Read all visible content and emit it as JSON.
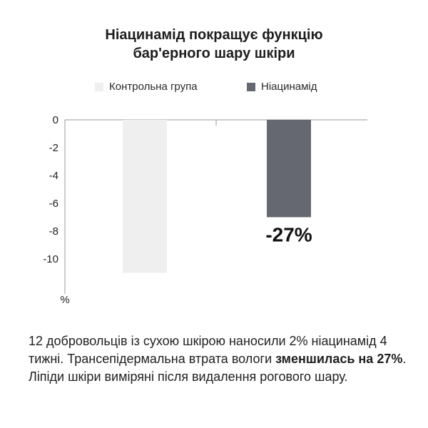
{
  "title": {
    "line1": "Ніацинамід покращує функцію",
    "line2": "бар'ерного шару шкіри"
  },
  "legend": [
    {
      "label": "Контрольна група",
      "color": "#efefef"
    },
    {
      "label": "Ніацинамід",
      "color": "#656870"
    }
  ],
  "chart_data": {
    "type": "bar",
    "categories": [
      "Контрольна група",
      "Ніацинамід"
    ],
    "values": [
      -11,
      -7
    ],
    "colors": [
      "#efefef",
      "#656870"
    ],
    "data_labels": [
      "",
      "-27%"
    ],
    "yticks": [
      0,
      -2,
      -4,
      -6,
      -8,
      -10
    ],
    "ylim": [
      -12,
      0
    ],
    "ylabel": "%",
    "grid": false,
    "legend_position": "top"
  },
  "caption": {
    "part1": "12 добровольців із сухою шкірою наносили 2% ніацинамід 4 тижні. Трансепідермальна втрата вологи ",
    "bold": "зменшилась на 27%",
    "part2": ". Ліпіди шкіри виміряні після видалення рогового шару."
  }
}
